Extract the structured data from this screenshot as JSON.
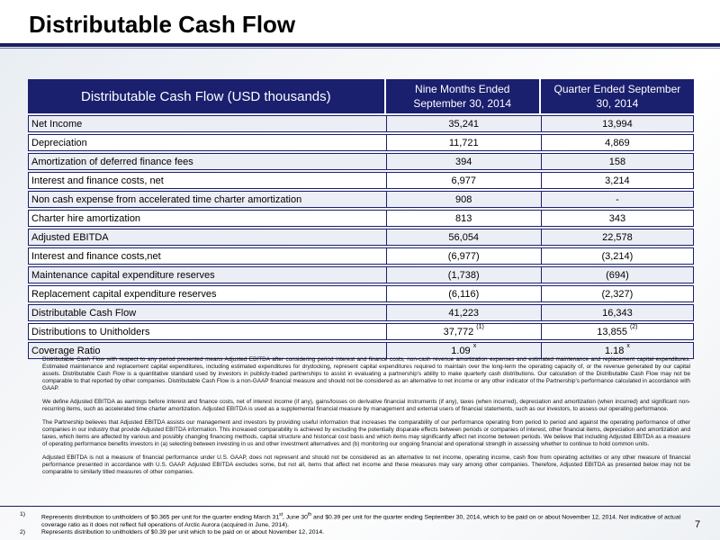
{
  "title": "Distributable Cash Flow",
  "table": {
    "header": {
      "main": "Distributable Cash Flow (USD thousands)",
      "col1_line1": "Nine Months Ended",
      "col1_line2": "September 30, 2014",
      "col2_line1": "Quarter Ended September",
      "col2_line2": "30, 2014"
    },
    "rows": [
      {
        "label": "Net Income",
        "nine_months": "35,241",
        "quarter": "13,994"
      },
      {
        "label": "Depreciation",
        "nine_months": "11,721",
        "quarter": "4,869"
      },
      {
        "label": "Amortization of deferred finance fees",
        "nine_months": "394",
        "quarter": "158"
      },
      {
        "label": "Interest and finance costs, net",
        "nine_months": "6,977",
        "quarter": "3,214"
      },
      {
        "label": "Non cash expense from accelerated time charter amortization",
        "nine_months": "908",
        "quarter": "-"
      },
      {
        "label": "Charter hire amortization",
        "nine_months": "813",
        "quarter": "343"
      },
      {
        "label": "Adjusted EBITDA",
        "nine_months": "56,054",
        "quarter": "22,578"
      },
      {
        "label": "Interest and finance costs,net",
        "nine_months": "(6,977)",
        "quarter": "(3,214)"
      },
      {
        "label": "Maintenance capital expenditure reserves",
        "nine_months": "(1,738)",
        "quarter": "(694)"
      },
      {
        "label": "Replacement capital expenditure reserves",
        "nine_months": "(6,116)",
        "quarter": "(2,327)"
      },
      {
        "label": "Distributable Cash Flow",
        "nine_months": "41,223",
        "quarter": "16,343"
      },
      {
        "label": "Distributions to Unitholders",
        "nine_months": "37,772",
        "nine_months_note": "(1)",
        "quarter": "13,855",
        "quarter_note": "(2)"
      },
      {
        "label": "Coverage Ratio",
        "nine_months": "1.09",
        "nine_months_suffix": "x",
        "quarter": "1.18",
        "quarter_suffix": "x"
      }
    ]
  },
  "notes": [
    "Distributable Cash Flow with respect to any period presented means Adjusted EBITDA after considering period interest and finance costs, non-cash revenue amortization expenses and estimated maintenance and replacement capital expenditures. Estimated maintenance and replacement capital expenditures, including estimated expenditures for drydocking, represent capital expenditures required to maintain over the long-term the operating capacity of, or the revenue generated by our capital assets. Distributable Cash Flow is a quantitative standard used by investors in publicly-traded partnerships to assist in evaluating a partnership’s ability to make quarterly cash distributions. Our calculation of the Distributable Cash Flow may not be comparable to that reported by other companies. Distributable Cash Flow is a non-GAAP financial measure and should not be considered as an alternative to net income or any other indicator of the Partnership’s performance calculated in accordance with GAAP.",
    "We define Adjusted EBITDA as earnings before interest and finance costs, net of interest income (if any), gains/losses on derivative financial instruments (if any), taxes (when incurred), depreciation and amortization (when incurred) and significant non-recurring items, such as accelerated time charter amortization. Adjusted EBITDA is used as a supplemental financial measure by management and external users of financial statements, such as our investors, to assess our operating performance.",
    "The Partnership believes that Adjusted EBITDA assists our management and investors by providing useful information that increases the comparability of our performance operating from period to period and against the operating performance of other companies in our industry that provide Adjusted EBITDA information. This increased comparability is achieved by excluding the potentially disparate effects between periods or companies of interest, other financial items, depreciation and amortization and taxes, which items are affected by various and possibly changing financing methods, capital structure and historical cost basis and which items may significantly affect net income between periods. We believe that including Adjusted EBITDA as a measure of operating performance benefits investors in (a) selecting between investing in us and other investment alternatives and (b) monitoring our ongoing financial and operational strength in assessing whether to continue to hold common units.",
    "Adjusted EBITDA is not a measure of financial performance under U.S. GAAP, does not represent and should not be considered as an alternative to net income, operating income, cash flow from operating activities or any other measure of financial performance presented in accordance with U.S. GAAP. Adjusted EBITDA excludes some, but not all, items that affect net income and these measures may vary among other companies. Therefore, Adjusted EBITDA as presented below may not be comparable to similarly titled measures of other companies."
  ],
  "footnotes": {
    "fn1": {
      "num": "1)",
      "part1": "Represents distribution to unitholders of $0.365 per unit for the quarter ending March 31",
      "sup1": "st",
      "part2": ", June 30",
      "sup2": "th",
      "part3": " and $0.39 per unit for the quarter ending September 30, 2014, which to be paid on or about November 12, 2014.  Not indicative of actual coverage ratio as it does not reflect full operations of Arctic Aurora (acquired in June, 2014)."
    },
    "fn2": {
      "num": "2)",
      "text": "Represents distribution to unitholders of $0.39 per unit which to be paid on or about November 12, 2014."
    }
  },
  "page_number": "7",
  "colors": {
    "header_navy": "#1a1f6e",
    "row_shade": "#eceef5"
  }
}
